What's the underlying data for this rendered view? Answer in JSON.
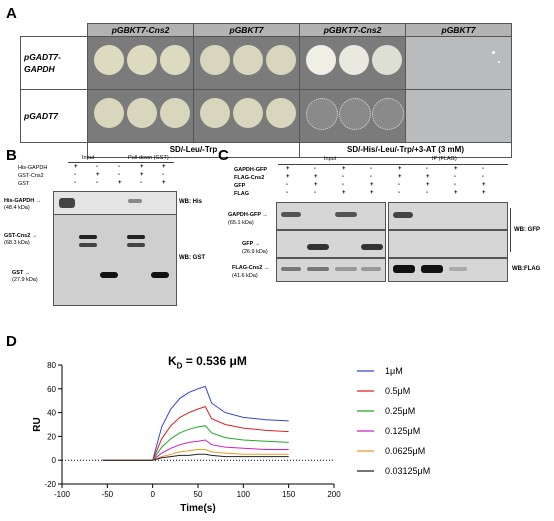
{
  "panel_a": {
    "label": "A",
    "headers": [
      "pGBKT7-Cns2",
      "pGBKT7",
      "pGBKT7-Cns2",
      "pGBKT7"
    ],
    "rows": [
      "pGADT7-\nGAPDH",
      "pGADT7"
    ],
    "media": [
      "SD/-Leu/-Trp",
      "SD/-His/-Leu/-Trp/+3-AT (3 mM)"
    ]
  },
  "panel_b": {
    "label": "B",
    "col_groups": [
      "Input",
      "Pull-down (GST)"
    ],
    "row_labels": [
      "His-GAPDH",
      "GST-Cns2",
      "GST"
    ],
    "signs": [
      [
        "+",
        "-",
        "-",
        "+",
        "+"
      ],
      [
        "-",
        "+",
        "-",
        "+",
        "-"
      ],
      [
        "-",
        "-",
        "+",
        "-",
        "+"
      ]
    ],
    "markers": [
      {
        "name": "His-GAPDH",
        "size": "(48.4 kDa)"
      },
      {
        "name": "GST-Cns2",
        "size": "(68.3 kDa)"
      },
      {
        "name": "GST",
        "size": "(27.9 kDa)"
      }
    ],
    "wb": [
      "WB: His",
      "WB: GST"
    ]
  },
  "panel_c": {
    "label": "C",
    "col_groups": [
      "Input",
      "IP (FLAG)"
    ],
    "row_labels": [
      "GAPDH-GFP",
      "FLAG-Cns2",
      "GFP",
      "FLAG"
    ],
    "signs": [
      [
        "+",
        "-",
        "+",
        "-",
        "+",
        "-",
        "+",
        "-"
      ],
      [
        "+",
        "+",
        "-",
        "-",
        "+",
        "+",
        "-",
        "-"
      ],
      [
        "-",
        "+",
        "-",
        "+",
        "-",
        "+",
        "-",
        "+"
      ],
      [
        "-",
        "-",
        "+",
        "+",
        "-",
        "-",
        "+",
        "+"
      ]
    ],
    "markers": [
      {
        "name": "GAPDH-GFP",
        "size": "(65.1 kDa)"
      },
      {
        "name": "GFP",
        "size": "(26.9 kDa)"
      },
      {
        "name": "FLAG-Cns2",
        "size": "(41.6 kDa)"
      }
    ],
    "wb": [
      "WB: GFP",
      "WB:FLAG"
    ]
  },
  "panel_d": {
    "label": "D",
    "kd_symbol": "K",
    "kd_sub": "D",
    "kd_value": " = 0.536 μM"
  },
  "chart_data": {
    "type": "line",
    "title": "",
    "xlabel": "Time(s)",
    "ylabel": "RU",
    "xlim": [
      -100,
      200
    ],
    "ylim": [
      -20,
      80
    ],
    "xticks": [
      -100,
      -50,
      0,
      50,
      100,
      150,
      200
    ],
    "yticks": [
      -20,
      0,
      20,
      40,
      60,
      80
    ],
    "legend_position": "right",
    "baseline": {
      "y": 0,
      "style": "dotted"
    },
    "series": [
      {
        "name": "1μM",
        "color": "#3344dd",
        "x": [
          0,
          10,
          20,
          30,
          40,
          50,
          58,
          65,
          80,
          100,
          125,
          150
        ],
        "y": [
          0,
          28,
          43,
          52,
          57,
          60,
          62,
          48,
          40,
          36,
          34,
          33
        ]
      },
      {
        "name": "0.5μM",
        "color": "#dd2222",
        "x": [
          0,
          10,
          20,
          30,
          40,
          50,
          58,
          65,
          80,
          100,
          125,
          150
        ],
        "y": [
          0,
          18,
          29,
          36,
          40,
          43,
          45,
          35,
          30,
          27,
          25,
          24
        ]
      },
      {
        "name": "0.25μM",
        "color": "#22aa22",
        "x": [
          0,
          10,
          20,
          30,
          40,
          50,
          58,
          65,
          80,
          100,
          125,
          150
        ],
        "y": [
          0,
          11,
          18,
          23,
          26,
          28,
          29,
          23,
          19,
          17,
          16,
          15
        ]
      },
      {
        "name": "0.125μM",
        "color": "#cc22cc",
        "x": [
          0,
          10,
          20,
          30,
          40,
          50,
          58,
          65,
          80,
          100,
          125,
          150
        ],
        "y": [
          0,
          6,
          10,
          13,
          15,
          16,
          17,
          13,
          11,
          10,
          9,
          9
        ]
      },
      {
        "name": "0.0625μM",
        "color": "#ee9922",
        "x": [
          0,
          10,
          20,
          30,
          40,
          50,
          58,
          65,
          80,
          100,
          125,
          150
        ],
        "y": [
          0,
          3,
          5,
          7,
          8,
          9,
          9,
          7,
          6,
          5,
          5,
          5
        ]
      },
      {
        "name": "0.03125μM",
        "color": "#222222",
        "x": [
          0,
          10,
          20,
          30,
          40,
          50,
          58,
          65,
          80,
          100,
          125,
          150
        ],
        "y": [
          0,
          2,
          3,
          4,
          4,
          5,
          5,
          4,
          3,
          3,
          3,
          3
        ]
      }
    ]
  }
}
